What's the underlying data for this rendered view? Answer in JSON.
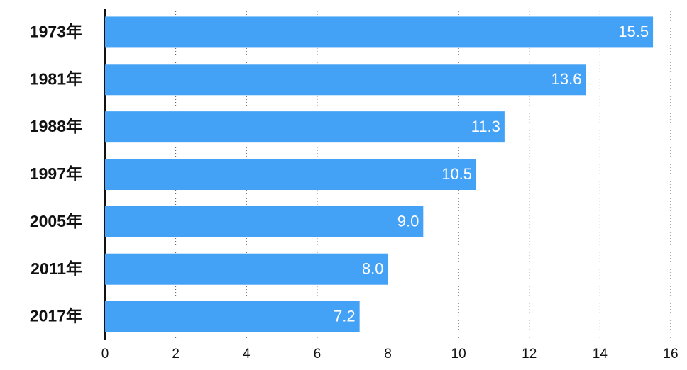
{
  "chart_data": {
    "type": "bar",
    "orientation": "horizontal",
    "categories": [
      "1973年",
      "1981年",
      "1988年",
      "1997年",
      "2005年",
      "2011年",
      "2017年"
    ],
    "values": [
      15.5,
      13.6,
      11.3,
      10.5,
      9.0,
      8.0,
      7.2
    ],
    "value_labels": [
      "15.5",
      "13.6",
      "11.3",
      "10.5",
      "9.0",
      "8.0",
      "7.2"
    ],
    "color": "#44a2f6",
    "xlim": [
      0,
      16
    ],
    "xticks": [
      0,
      2,
      4,
      6,
      8,
      10,
      12,
      14,
      16
    ],
    "grid": true
  }
}
